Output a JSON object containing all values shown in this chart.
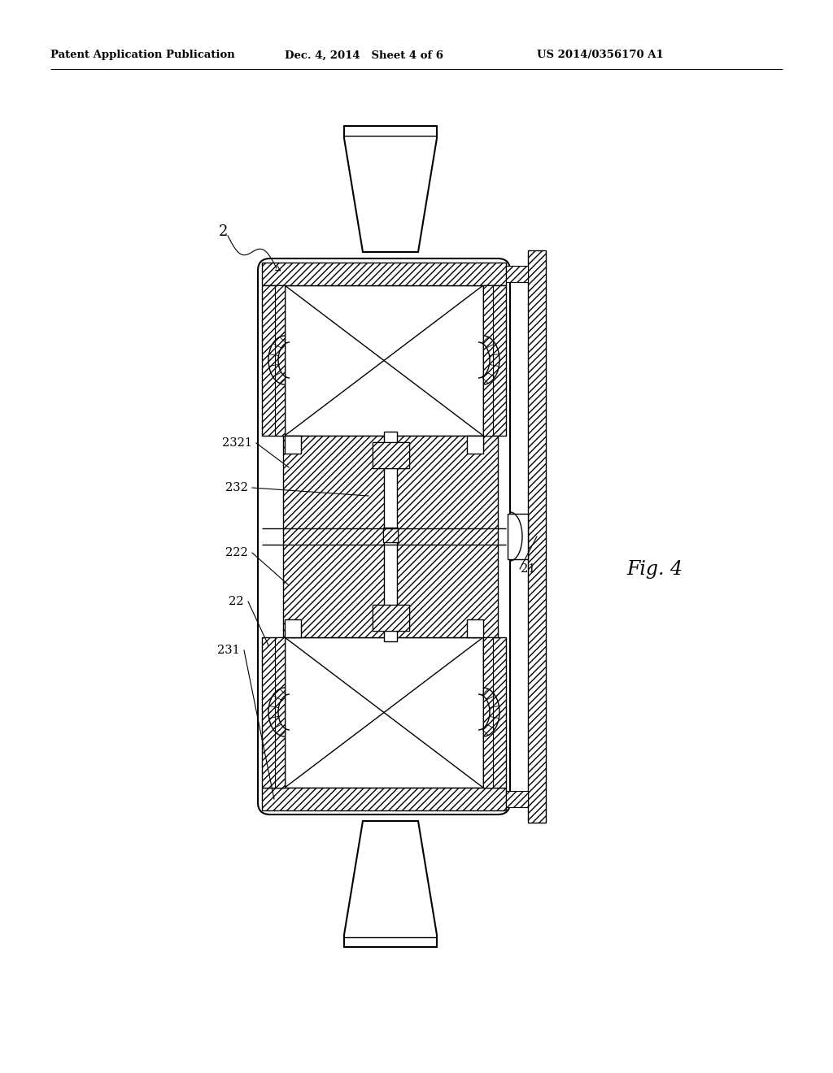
{
  "title_left": "Patent Application Publication",
  "title_mid": "Dec. 4, 2014   Sheet 4 of 6",
  "title_right": "US 2014/0356170 A1",
  "fig_label": "Fig. 4",
  "label_2": "2",
  "label_21": "21",
  "label_22": "22",
  "label_222": "222",
  "label_231": "231",
  "label_232": "232",
  "label_2321": "2321",
  "bg_color": "#ffffff",
  "line_color": "#000000"
}
